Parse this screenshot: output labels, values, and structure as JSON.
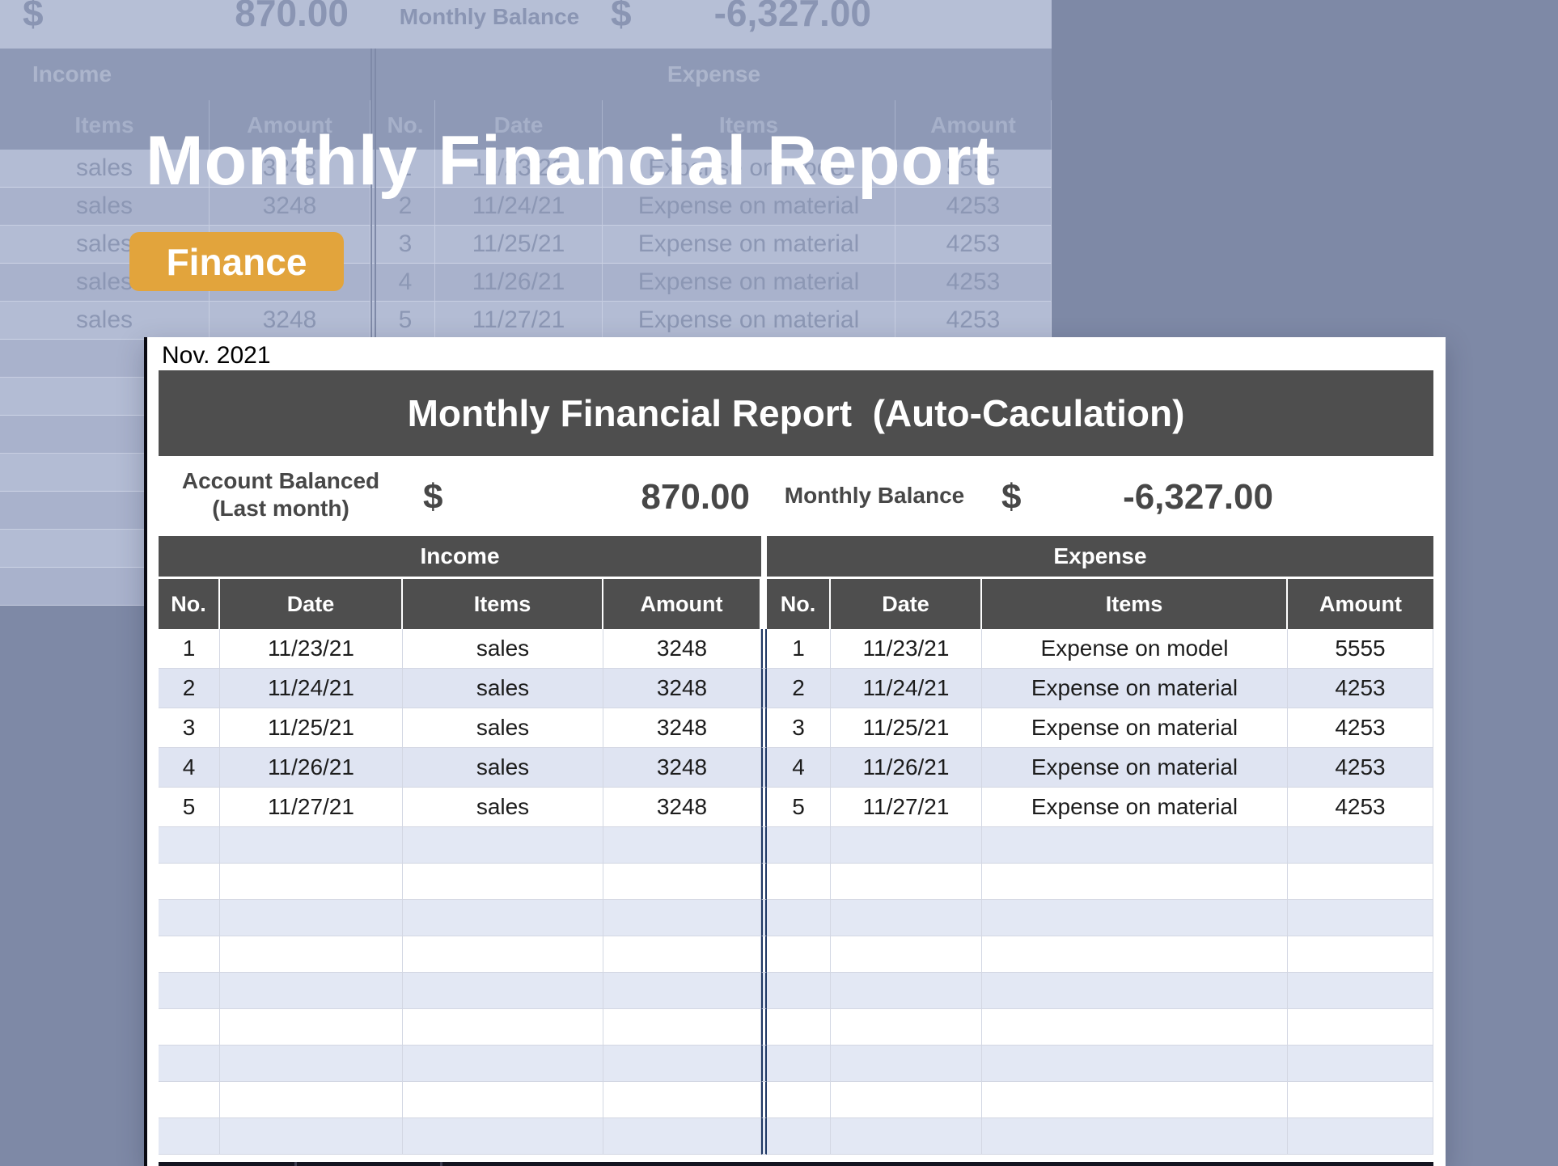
{
  "page": {
    "background_color": "#7E89A6"
  },
  "hero": {
    "title": "Monthly Financial Report",
    "badge_label": "Finance",
    "badge_color": "#E2A43C"
  },
  "background_sheet": {
    "balance": {
      "currency_left": "$",
      "last_month_value": "870.00",
      "monthly_label": "Monthly Balance",
      "currency_right": "$",
      "monthly_value": "-6,327.00"
    },
    "section_income": "Income",
    "section_expense": "Expense",
    "columns": [
      "Items",
      "Amount",
      "No.",
      "Date",
      "Items",
      "Amount"
    ],
    "rows": [
      {
        "item": "sales",
        "amount": "3248",
        "e_no": "1",
        "e_date": "11/23/21",
        "e_item": "Expense on model",
        "e_amount": "5555"
      },
      {
        "item": "sales",
        "amount": "3248",
        "e_no": "2",
        "e_date": "11/24/21",
        "e_item": "Expense on material",
        "e_amount": "4253"
      },
      {
        "item": "sales",
        "amount": "3248",
        "e_no": "3",
        "e_date": "11/25/21",
        "e_item": "Expense on material",
        "e_amount": "4253"
      },
      {
        "item": "sales",
        "amount": "3248",
        "e_no": "4",
        "e_date": "11/26/21",
        "e_item": "Expense on material",
        "e_amount": "4253"
      },
      {
        "item": "sales",
        "amount": "3248",
        "e_no": "5",
        "e_date": "11/27/21",
        "e_item": "Expense on material",
        "e_amount": "4253"
      }
    ],
    "empty_row_count": 7
  },
  "card": {
    "corner_label": "Nov. 2021",
    "title": "Monthly Financial Report  (Auto-Caculation)",
    "header_color": "#4E4E4E",
    "divider_color": "#1F3864",
    "stripe_color": "#DFE4F2",
    "balance": {
      "label_line1": "Account Balanced",
      "label_line2": "(Last month)",
      "currency_left": "$",
      "last_month_value": "870.00",
      "monthly_label": "Monthly Balance",
      "currency_right": "$",
      "monthly_value": "-6,327.00"
    },
    "section_income": "Income",
    "section_expense": "Expense",
    "columns": [
      "No.",
      "Date",
      "Items",
      "Amount",
      "No.",
      "Date",
      "Items",
      "Amount"
    ],
    "rows": [
      {
        "no": "1",
        "date": "11/23/21",
        "items": "sales",
        "amount": "3248",
        "e_no": "1",
        "e_date": "11/23/21",
        "e_items": "Expense on model",
        "e_amount": "5555"
      },
      {
        "no": "2",
        "date": "11/24/21",
        "items": "sales",
        "amount": "3248",
        "e_no": "2",
        "e_date": "11/24/21",
        "e_items": "Expense on material",
        "e_amount": "4253"
      },
      {
        "no": "3",
        "date": "11/25/21",
        "items": "sales",
        "amount": "3248",
        "e_no": "3",
        "e_date": "11/25/21",
        "e_items": "Expense on material",
        "e_amount": "4253"
      },
      {
        "no": "4",
        "date": "11/26/21",
        "items": "sales",
        "amount": "3248",
        "e_no": "4",
        "e_date": "11/26/21",
        "e_items": "Expense on material",
        "e_amount": "4253"
      },
      {
        "no": "5",
        "date": "11/27/21",
        "items": "sales",
        "amount": "3248",
        "e_no": "5",
        "e_date": "11/27/21",
        "e_items": "Expense on material",
        "e_amount": "4253"
      }
    ],
    "empty_row_count": 9
  }
}
